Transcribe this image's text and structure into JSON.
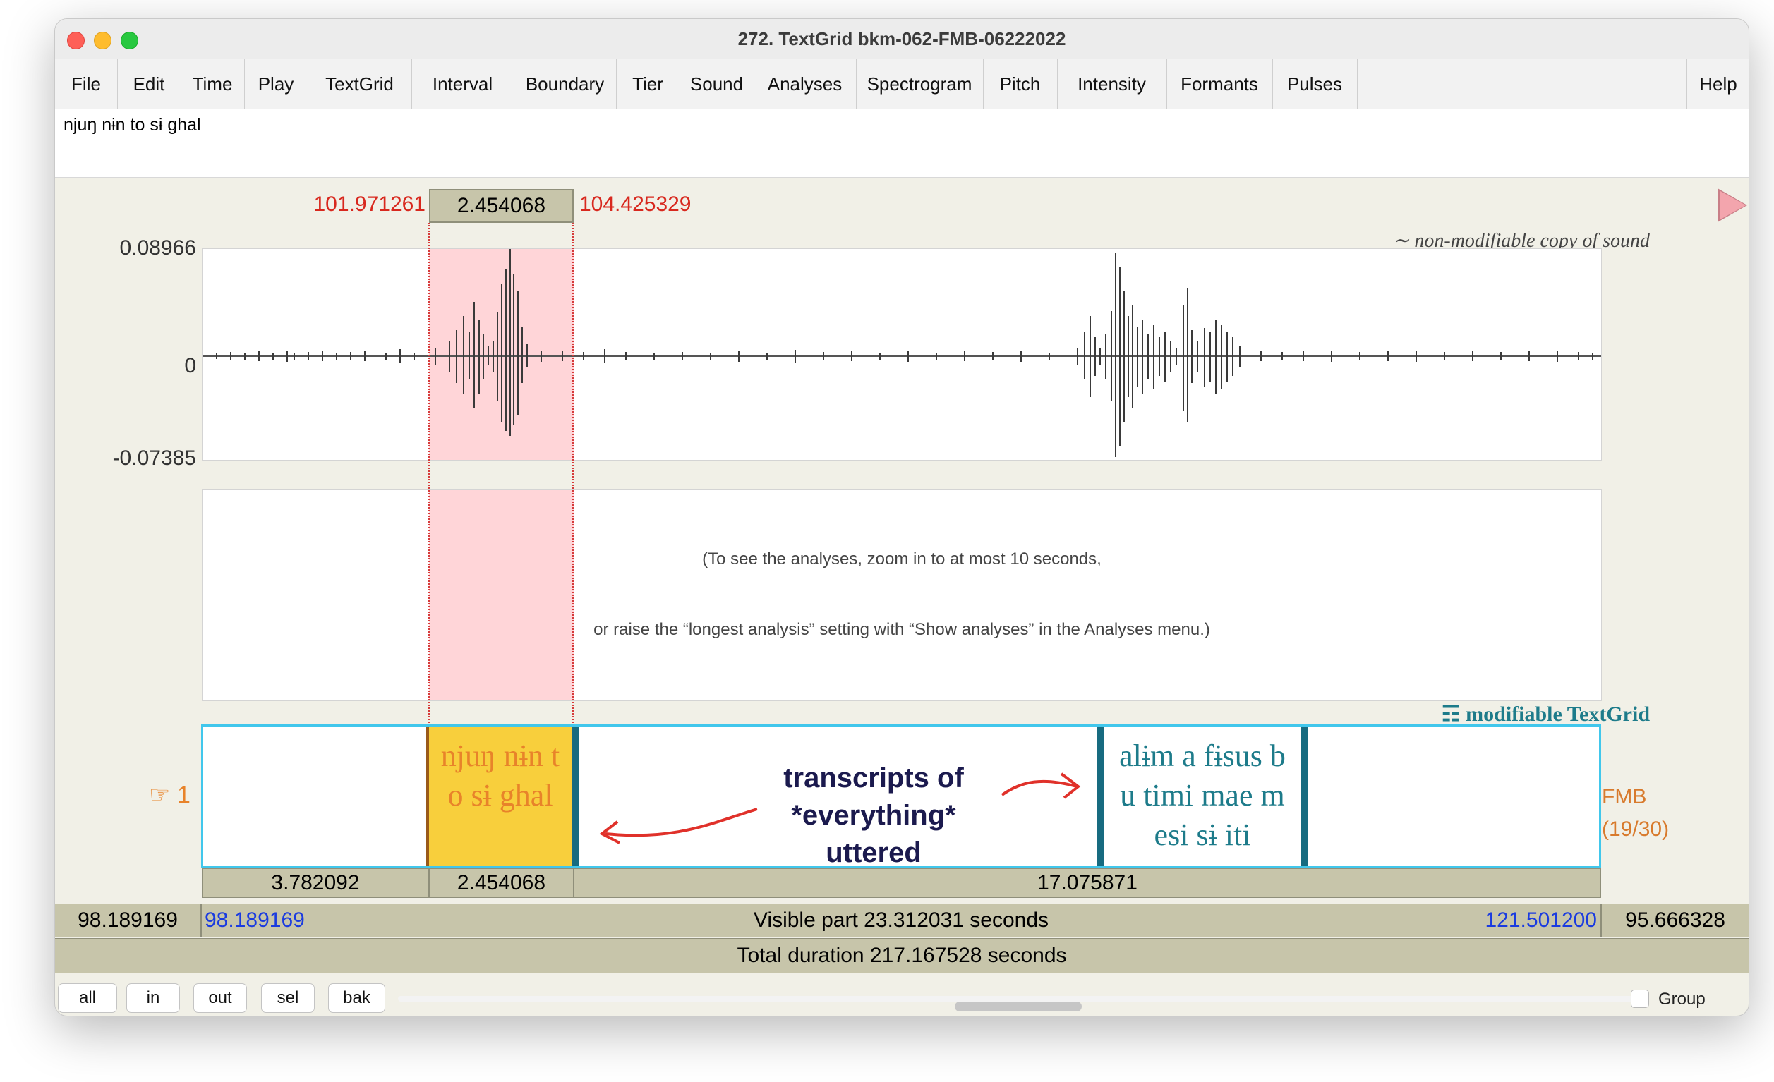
{
  "window": {
    "title": "272. TextGrid bkm-062-FMB-06222022"
  },
  "menu": [
    "File",
    "Edit",
    "Time",
    "Play",
    "TextGrid",
    "Interval",
    "Boundary",
    "Tier",
    "Sound",
    "Analyses",
    "Spectrogram",
    "Pitch",
    "Intensity",
    "Formants",
    "Pulses"
  ],
  "menu_help": "Help",
  "text_field": "njuŋ nɨn to sɨ ghal",
  "selection": {
    "start": "101.971261",
    "duration": "2.454068",
    "end": "104.425329"
  },
  "waveform": {
    "ymax": "0.08966",
    "zero": "0",
    "ymin": "-0.07385",
    "label": "non-modifiable copy of sound"
  },
  "analysis_message": {
    "line1": "(To see the analyses, zoom in to at most 10 seconds,",
    "line2": "or raise the “longest analysis” setting with “Show analyses” in the Analyses menu.)"
  },
  "textgrid": {
    "label": "modifiable TextGrid",
    "tier_number": "1",
    "tier_name": "FMB",
    "tier_count": "(19/30)",
    "interval_selected_line1": "njuŋ nɨn t",
    "interval_selected_line2": "o sɨ ghal",
    "interval_next_line1": "alɨm a fɨsus b",
    "interval_next_line2": "u timi mae m",
    "interval_next_line3": "esi sɨ iti",
    "annotation_line1": "transcripts of",
    "annotation_line2": "*everything*",
    "annotation_line3": "uttered"
  },
  "durations": [
    "3.782092",
    "2.454068",
    "17.075871"
  ],
  "visible": {
    "left_outside": "98.189169",
    "start": "98.189169",
    "label": "Visible part 23.312031 seconds",
    "end": "121.501200",
    "right_outside": "95.666328"
  },
  "total": "Total duration 217.167528 seconds",
  "buttons": [
    "all",
    "in",
    "out",
    "sel",
    "bak"
  ],
  "group_label": "Group",
  "colors": {
    "selection_shade": "#ffd5d8",
    "selected_interval": "#f8cf3c",
    "tier_border": "#41c7ec",
    "time_red": "#d8281e",
    "time_blue": "#1a3be0",
    "boundary": "#176b80"
  },
  "icons": [
    "close-window-icon",
    "minimize-window-icon",
    "zoom-window-icon",
    "play-triangle-icon",
    "pointing-hand-icon",
    "textgrid-icon",
    "annotation-arrow-icon"
  ]
}
